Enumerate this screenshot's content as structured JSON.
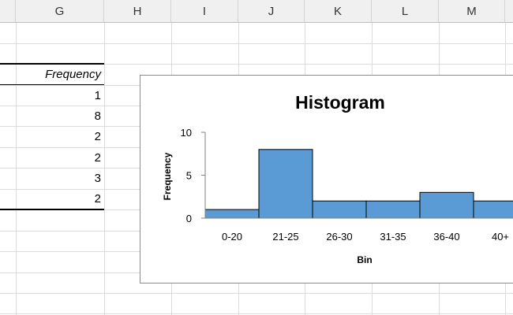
{
  "columns": [
    "G",
    "H",
    "I",
    "J",
    "K",
    "L",
    "M"
  ],
  "table": {
    "header": "Frequency",
    "values": [
      "1",
      "8",
      "2",
      "2",
      "3",
      "2"
    ]
  },
  "colors": {
    "bar_fill": "#5b9bd5",
    "bar_stroke": "#000000",
    "header_bg": "#f0f0f0",
    "grid": "#dadcdd"
  },
  "chart_data": {
    "type": "bar",
    "title": "Histogram",
    "xlabel": "Bin",
    "ylabel": "Frequency",
    "categories": [
      "0-20",
      "21-25",
      "26-30",
      "31-35",
      "36-40",
      "40+"
    ],
    "values": [
      1,
      8,
      2,
      2,
      3,
      2
    ],
    "ylim": [
      0,
      10
    ],
    "yticks": [
      0,
      5,
      10
    ],
    "grid": false,
    "legend": "none"
  }
}
